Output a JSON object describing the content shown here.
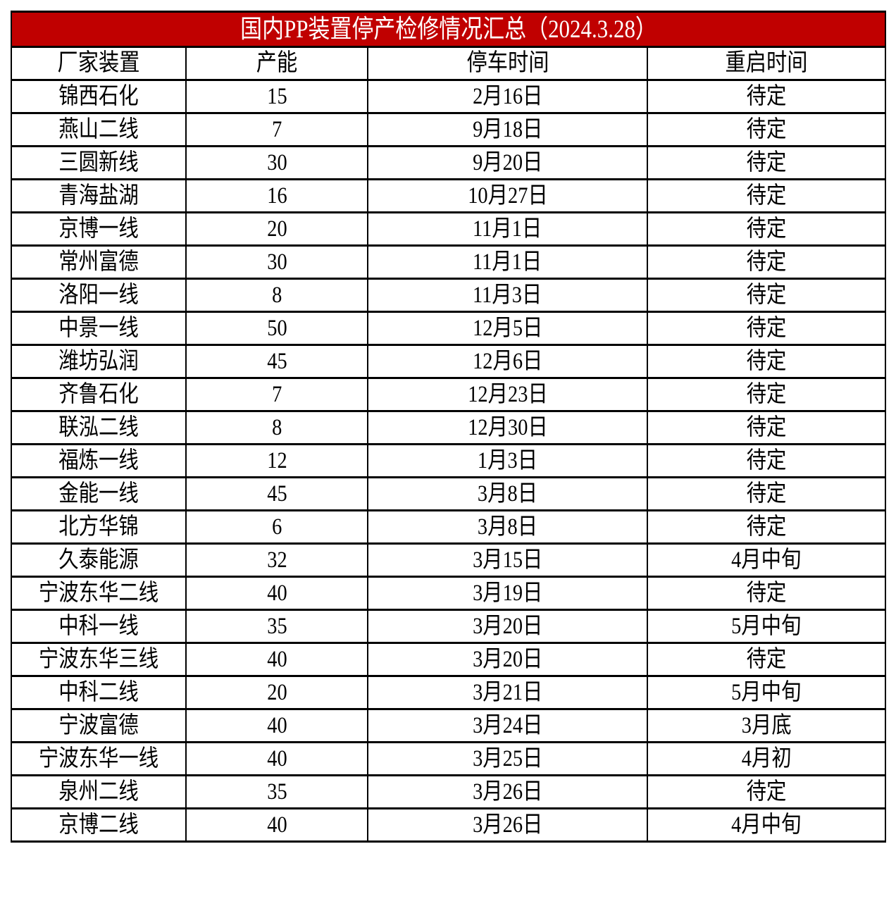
{
  "title": "国内PP装置停产检修情况汇总（2024.3.28）",
  "colors": {
    "title_bg": "#C00000",
    "title_text": "#FFFFFF",
    "border": "#000000"
  },
  "columns": [
    "厂家装置",
    "产能",
    "停车时间",
    "重启时间"
  ],
  "rows": [
    [
      "锦西石化",
      "15",
      "2月16日",
      "待定"
    ],
    [
      "燕山二线",
      "7",
      "9月18日",
      "待定"
    ],
    [
      "三圆新线",
      "30",
      "9月20日",
      "待定"
    ],
    [
      "青海盐湖",
      "16",
      "10月27日",
      "待定"
    ],
    [
      "京博一线",
      "20",
      "11月1日",
      "待定"
    ],
    [
      "常州富德",
      "30",
      "11月1日",
      "待定"
    ],
    [
      "洛阳一线",
      "8",
      "11月3日",
      "待定"
    ],
    [
      "中景一线",
      "50",
      "12月5日",
      "待定"
    ],
    [
      "潍坊弘润",
      "45",
      "12月6日",
      "待定"
    ],
    [
      "齐鲁石化",
      "7",
      "12月23日",
      "待定"
    ],
    [
      "联泓二线",
      "8",
      "12月30日",
      "待定"
    ],
    [
      "福炼一线",
      "12",
      "1月3日",
      "待定"
    ],
    [
      "金能一线",
      "45",
      "3月8日",
      "待定"
    ],
    [
      "北方华锦",
      "6",
      "3月8日",
      "待定"
    ],
    [
      "久泰能源",
      "32",
      "3月15日",
      "4月中旬"
    ],
    [
      "宁波东华二线",
      "40",
      "3月19日",
      "待定"
    ],
    [
      "中科一线",
      "35",
      "3月20日",
      "5月中旬"
    ],
    [
      "宁波东华三线",
      "40",
      "3月20日",
      "待定"
    ],
    [
      "中科二线",
      "20",
      "3月21日",
      "5月中旬"
    ],
    [
      "宁波富德",
      "40",
      "3月24日",
      "3月底"
    ],
    [
      "宁波东华一线",
      "40",
      "3月25日",
      "4月初"
    ],
    [
      "泉州二线",
      "35",
      "3月26日",
      "待定"
    ],
    [
      "京博二线",
      "40",
      "3月26日",
      "4月中旬"
    ]
  ]
}
